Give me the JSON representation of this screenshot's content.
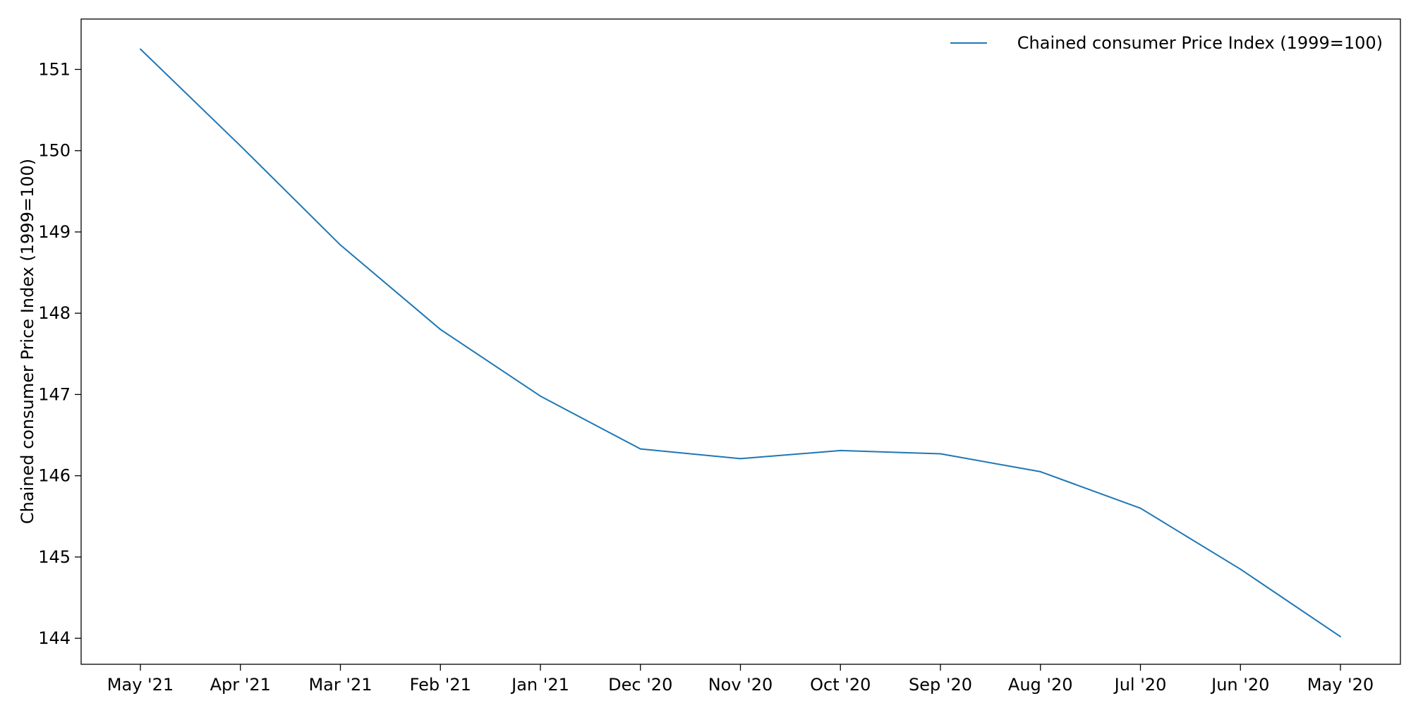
{
  "chart_data": {
    "type": "line",
    "title": "",
    "xlabel": "",
    "ylabel": "Chained consumer Price Index (1999=100)",
    "categories": [
      "May '21",
      "Apr '21",
      "Mar '21",
      "Feb '21",
      "Jan '21",
      "Dec '20",
      "Nov '20",
      "Oct '20",
      "Sep '20",
      "Aug '20",
      "Jul '20",
      "Jun '20",
      "May '20"
    ],
    "series": [
      {
        "name": "Chained consumer Price Index (1999=100)",
        "color": "#1f77b4",
        "values": [
          151.25,
          150.06,
          148.84,
          147.8,
          146.98,
          146.33,
          146.21,
          146.31,
          146.27,
          146.05,
          145.6,
          144.85,
          144.02
        ]
      }
    ],
    "ylim": [
      143.68,
      151.62
    ],
    "yticks": [
      144,
      145,
      146,
      147,
      148,
      149,
      150,
      151
    ],
    "ytick_labels": [
      "144",
      "145",
      "146",
      "147",
      "148",
      "149",
      "150",
      "151"
    ],
    "grid": false,
    "legend_position": "top-right"
  }
}
